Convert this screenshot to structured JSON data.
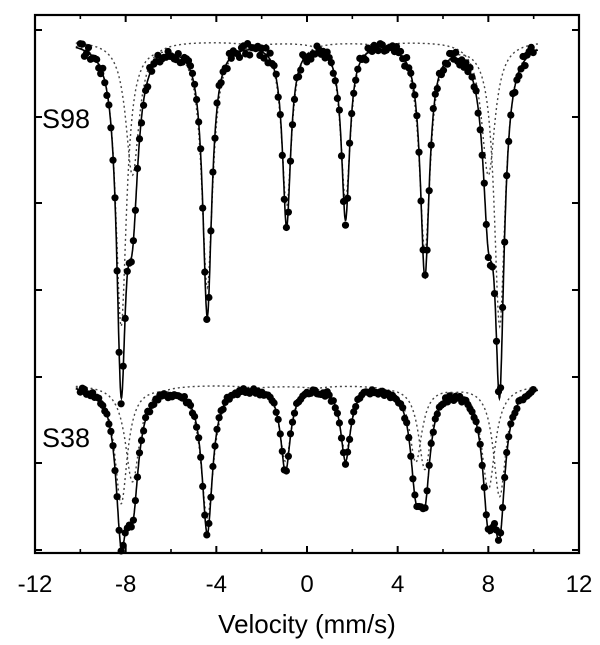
{
  "chart_data": {
    "type": "scatter",
    "xlabel": "Velocity (mm/s)",
    "ylabel": "",
    "xlim": [
      -12,
      12
    ],
    "x_ticks": [
      -12,
      -8,
      -4,
      0,
      4,
      8,
      12
    ],
    "x_tick_labels": [
      "-12",
      "-8",
      "-4",
      "0",
      "4",
      "8",
      "12"
    ],
    "grid": false,
    "legend": "none",
    "series": [
      {
        "name": "S98",
        "baseline": 1.0,
        "lines": [
          {
            "center": -8.2,
            "depth": 0.95,
            "width": 0.24
          },
          {
            "center": -7.7,
            "depth": 0.45,
            "width": 0.3
          },
          {
            "center": -4.4,
            "depth": 0.82,
            "width": 0.24
          },
          {
            "center": -0.9,
            "depth": 0.55,
            "width": 0.22
          },
          {
            "center": 1.7,
            "depth": 0.53,
            "width": 0.22
          },
          {
            "center": 5.2,
            "depth": 0.7,
            "width": 0.24
          },
          {
            "center": 8.0,
            "depth": 0.45,
            "width": 0.3
          },
          {
            "center": 8.5,
            "depth": 0.95,
            "width": 0.24
          }
        ]
      },
      {
        "name": "S38",
        "baseline": 1.0,
        "lines": [
          {
            "center": -8.2,
            "depth": 0.85,
            "width": 0.28
          },
          {
            "center": -7.7,
            "depth": 0.7,
            "width": 0.32
          },
          {
            "center": -4.4,
            "depth": 0.95,
            "width": 0.28
          },
          {
            "center": -0.95,
            "depth": 0.55,
            "width": 0.26
          },
          {
            "center": 1.7,
            "depth": 0.48,
            "width": 0.26
          },
          {
            "center": 4.8,
            "depth": 0.55,
            "width": 0.28
          },
          {
            "center": 5.2,
            "depth": 0.6,
            "width": 0.28
          },
          {
            "center": 8.0,
            "depth": 0.75,
            "width": 0.3
          },
          {
            "center": 8.5,
            "depth": 0.8,
            "width": 0.28
          }
        ]
      }
    ]
  }
}
